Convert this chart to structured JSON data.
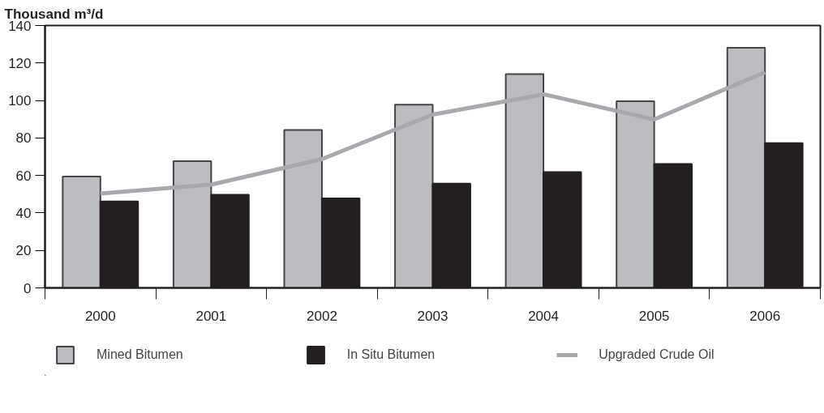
{
  "chart_data": {
    "type": "bar",
    "ylabel": "Thousand m³/d",
    "categories": [
      "2000",
      "2001",
      "2002",
      "2003",
      "2004",
      "2005",
      "2006"
    ],
    "series": [
      {
        "name": "Mined Bitumen",
        "color": "#bcbdc0",
        "values": [
          59.4,
          67.6,
          84.3,
          97.8,
          114.1,
          99.6,
          128.1
        ]
      },
      {
        "name": "In Situ Bitumen",
        "color": "#231f20",
        "values": [
          46.1,
          49.7,
          47.8,
          55.6,
          61.8,
          66.1,
          77.2
        ]
      },
      {
        "name": "Upgraded Crude Oil",
        "type": "line",
        "color": "#a7a9ac",
        "values": [
          50.3,
          55.1,
          68.7,
          92.5,
          103.3,
          89.9,
          115.1
        ]
      }
    ],
    "ylim": [
      0,
      140
    ],
    "yticks": [
      0,
      20,
      40,
      60,
      80,
      100,
      120,
      140
    ],
    "grid": false,
    "legend": "bottom",
    "marker": "none",
    "line_style": "solid"
  }
}
